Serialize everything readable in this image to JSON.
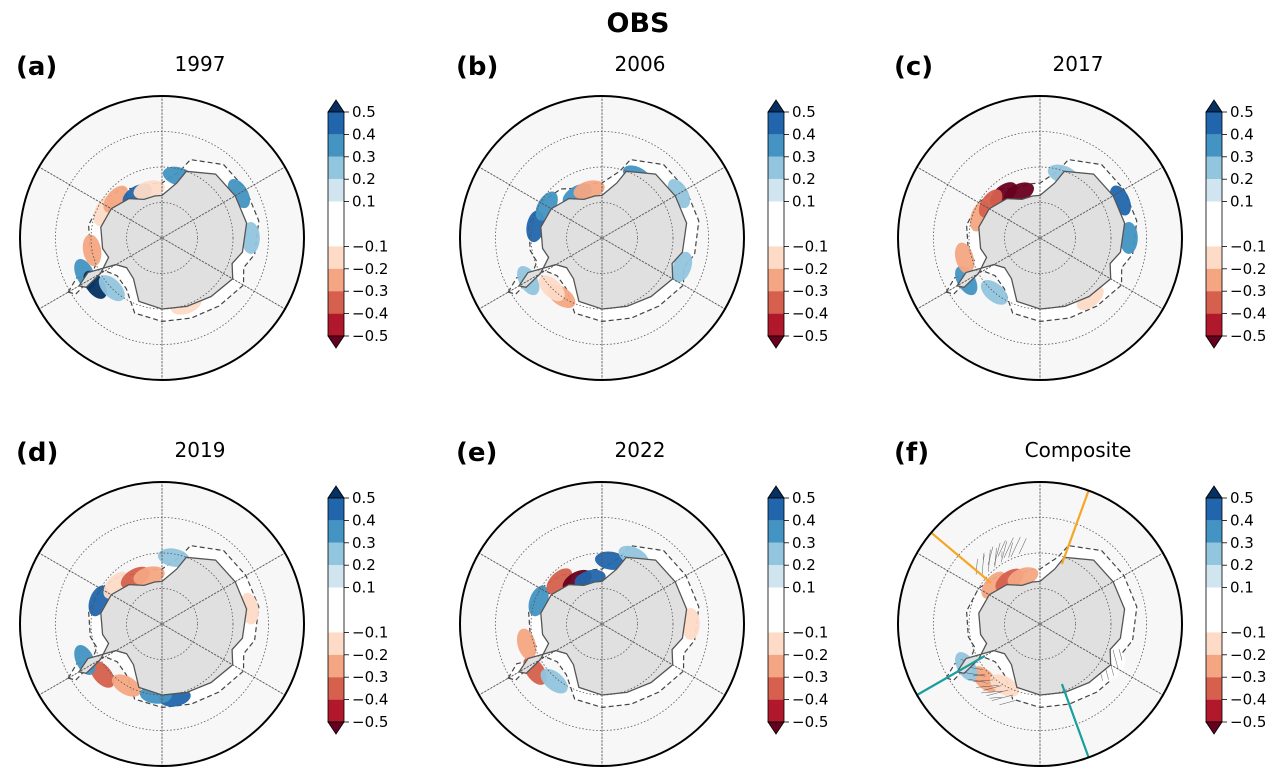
{
  "figure": {
    "title": "OBS"
  },
  "colors": {
    "land": "#e0e0e0",
    "ocean": "#f7f7f7",
    "levels": [
      "#67001f",
      "#b2182b",
      "#d6604d",
      "#f4a582",
      "#fddbc7",
      "#ffffff",
      "#d1e5f0",
      "#92c5de",
      "#4393c3",
      "#2166ac",
      "#053061"
    ],
    "boxes": [
      "#b2182b",
      "#d6604d",
      "#f4a582",
      "#fddbc7",
      "#ffffff",
      "#ffffff",
      "#d1e5f0",
      "#92c5de",
      "#4393c3",
      "#2166ac"
    ],
    "extend_low": "#67001f",
    "extend_high": "#053061",
    "teal_line": "#1a9e9e",
    "orange_line": "#f5a623"
  },
  "chart_data": [
    {
      "type": "heatmap",
      "label": "(a)",
      "title": "1997",
      "colorbar": {
        "ticks": [
          "0.5",
          "0.4",
          "0.3",
          "0.2",
          "0.1",
          "−0.1",
          "−0.2",
          "−0.3",
          "−0.4",
          "−0.5"
        ],
        "extend": "both"
      },
      "anomalies": [
        {
          "lon": -65,
          "lat": -66,
          "value": 0.3
        },
        {
          "lon": -55,
          "lat": -67,
          "value": 0.5
        },
        {
          "lon": -45,
          "lat": -70,
          "value": 0.2
        },
        {
          "lon": -115,
          "lat": -72,
          "value": -0.2
        },
        {
          "lon": -130,
          "lat": -73,
          "value": -0.3
        },
        {
          "lon": -150,
          "lat": -76,
          "value": 0.4
        },
        {
          "lon": -165,
          "lat": -76,
          "value": -0.2
        },
        {
          "lon": -80,
          "lat": -70,
          "value": -0.3
        },
        {
          "lon": 165,
          "lat": -72,
          "value": 0.3
        },
        {
          "lon": 120,
          "lat": -65,
          "value": 0.3
        },
        {
          "lon": 90,
          "lat": -65,
          "value": 0.2
        },
        {
          "lon": 20,
          "lat": -70,
          "value": -0.2
        }
      ]
    },
    {
      "type": "heatmap",
      "label": "(b)",
      "title": "2006",
      "colorbar": {
        "ticks": [
          "0.5",
          "0.4",
          "0.3",
          "0.2",
          "0.1",
          "−0.1",
          "−0.2",
          "−0.3",
          "−0.4",
          "−0.5"
        ],
        "extend": "both"
      },
      "anomalies": [
        {
          "lon": -60,
          "lat": -66,
          "value": 0.2
        },
        {
          "lon": -35,
          "lat": -70,
          "value": -0.3
        },
        {
          "lon": -45,
          "lat": -70,
          "value": -0.2
        },
        {
          "lon": -100,
          "lat": -71,
          "value": 0.4
        },
        {
          "lon": -120,
          "lat": -72,
          "value": 0.3
        },
        {
          "lon": -150,
          "lat": -76,
          "value": 0.3
        },
        {
          "lon": -165,
          "lat": -76,
          "value": -0.3
        },
        {
          "lon": 150,
          "lat": -70,
          "value": 0.3
        },
        {
          "lon": 120,
          "lat": -65,
          "value": 0.2
        },
        {
          "lon": 70,
          "lat": -66,
          "value": 0.2
        }
      ]
    },
    {
      "type": "heatmap",
      "label": "(c)",
      "title": "2017",
      "colorbar": {
        "ticks": [
          "0.5",
          "0.4",
          "0.3",
          "0.2",
          "0.1",
          "−0.1",
          "−0.2",
          "−0.3",
          "−0.4",
          "−0.5"
        ],
        "extend": "both"
      },
      "anomalies": [
        {
          "lon": -60,
          "lat": -66,
          "value": 0.3
        },
        {
          "lon": -40,
          "lat": -70,
          "value": 0.2
        },
        {
          "lon": -75,
          "lat": -68,
          "value": -0.3
        },
        {
          "lon": -110,
          "lat": -72,
          "value": -0.3
        },
        {
          "lon": -140,
          "lat": -74,
          "value": -0.5
        },
        {
          "lon": -155,
          "lat": -76,
          "value": -0.5
        },
        {
          "lon": -125,
          "lat": -73,
          "value": -0.4
        },
        {
          "lon": 160,
          "lat": -71,
          "value": 0.2
        },
        {
          "lon": 115,
          "lat": -65,
          "value": 0.4
        },
        {
          "lon": 90,
          "lat": -65,
          "value": 0.3
        },
        {
          "lon": 40,
          "lat": -68,
          "value": -0.2
        }
      ]
    },
    {
      "type": "heatmap",
      "label": "(d)",
      "title": "2019",
      "colorbar": {
        "ticks": [
          "0.5",
          "0.4",
          "0.3",
          "0.2",
          "0.1",
          "−0.1",
          "−0.2",
          "−0.3",
          "−0.4",
          "−0.5"
        ],
        "extend": "both"
      },
      "anomalies": [
        {
          "lon": -50,
          "lat": -68,
          "value": -0.4
        },
        {
          "lon": -30,
          "lat": -70,
          "value": -0.3
        },
        {
          "lon": -65,
          "lat": -66,
          "value": 0.3
        },
        {
          "lon": 10,
          "lat": -69,
          "value": 0.4
        },
        {
          "lon": -5,
          "lat": -70,
          "value": 0.3
        },
        {
          "lon": -110,
          "lat": -71,
          "value": 0.4
        },
        {
          "lon": -130,
          "lat": -73,
          "value": -0.2
        },
        {
          "lon": -150,
          "lat": -75,
          "value": -0.4
        },
        {
          "lon": -165,
          "lat": -76,
          "value": -0.3
        },
        {
          "lon": 170,
          "lat": -71,
          "value": 0.2
        },
        {
          "lon": 100,
          "lat": -65,
          "value": -0.2
        }
      ]
    },
    {
      "type": "heatmap",
      "label": "(e)",
      "title": "2022",
      "colorbar": {
        "ticks": [
          "0.5",
          "0.4",
          "0.3",
          "0.2",
          "0.1",
          "−0.1",
          "−0.2",
          "−0.3",
          "−0.4",
          "−0.5"
        ],
        "extend": "both"
      },
      "anomalies": [
        {
          "lon": -55,
          "lat": -67,
          "value": -0.4
        },
        {
          "lon": -40,
          "lat": -69,
          "value": 0.2
        },
        {
          "lon": -75,
          "lat": -68,
          "value": -0.3
        },
        {
          "lon": -110,
          "lat": -71,
          "value": 0.3
        },
        {
          "lon": -135,
          "lat": -73,
          "value": -0.4
        },
        {
          "lon": -150,
          "lat": -76,
          "value": -0.5
        },
        {
          "lon": -165,
          "lat": -77,
          "value": 0.4
        },
        {
          "lon": 172,
          "lat": -72,
          "value": 0.4
        },
        {
          "lon": 155,
          "lat": -69,
          "value": 0.2
        },
        {
          "lon": 90,
          "lat": -65,
          "value": -0.2
        }
      ]
    },
    {
      "type": "heatmap",
      "label": "(f)",
      "title": "Composite",
      "colorbar": {
        "ticks": [
          "0.5",
          "0.4",
          "0.3",
          "0.2",
          "0.1",
          "−0.1",
          "−0.2",
          "−0.3",
          "−0.4",
          "−0.5"
        ],
        "extend": "both"
      },
      "anomalies": [
        {
          "lon": -45,
          "lat": -68,
          "value": -0.3
        },
        {
          "lon": -30,
          "lat": -70,
          "value": -0.2
        },
        {
          "lon": -60,
          "lat": -66,
          "value": 0.2
        },
        {
          "lon": -130,
          "lat": -73,
          "value": -0.3
        },
        {
          "lon": -145,
          "lat": -75,
          "value": -0.4
        },
        {
          "lon": -160,
          "lat": -76,
          "value": -0.3
        },
        {
          "lon": 60,
          "lat": -66,
          "value": -0.1
        }
      ],
      "hatched_lons": [
        -55,
        -40,
        -30,
        -140,
        -150,
        -160,
        60
      ],
      "sector_lines": [
        {
          "lon": -60,
          "color": "teal"
        },
        {
          "lon": 20,
          "color": "teal"
        },
        {
          "lon": -130,
          "color": "orange"
        },
        {
          "lon": 160,
          "color": "orange"
        }
      ]
    }
  ]
}
